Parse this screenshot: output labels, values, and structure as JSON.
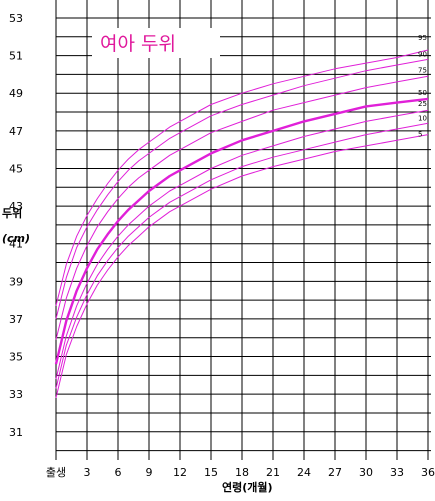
{
  "chart_data": {
    "type": "line",
    "title": "여아 두위",
    "xlabel": "연령(개월)",
    "ylabel": "두위",
    "ylabel_unit": "(cm)",
    "x_tick_labels": [
      "출생",
      "3",
      "6",
      "9",
      "12",
      "15",
      "18",
      "21",
      "24",
      "27",
      "30",
      "33",
      "36"
    ],
    "x_ticks": [
      0,
      3,
      6,
      9,
      12,
      15,
      18,
      21,
      24,
      27,
      30,
      33,
      36
    ],
    "xlim": [
      0,
      36
    ],
    "ylim": [
      29.5,
      53
    ],
    "y_ticks": [
      31,
      33,
      35,
      37,
      39,
      41,
      43,
      45,
      47,
      49,
      51,
      53
    ],
    "grid": true,
    "line_color": "#e020d8",
    "highlight_series": "50",
    "x": [
      0,
      1,
      2,
      3,
      4,
      5,
      6,
      7,
      8,
      9,
      10,
      11,
      12,
      15,
      18,
      21,
      24,
      27,
      30,
      33,
      36
    ],
    "series": [
      {
        "name": "95",
        "values": [
          37.7,
          39.9,
          41.4,
          42.5,
          43.4,
          44.2,
          44.9,
          45.5,
          46.0,
          46.4,
          46.8,
          47.2,
          47.5,
          48.4,
          49.0,
          49.5,
          49.9,
          50.3,
          50.6,
          50.9,
          51.3
        ]
      },
      {
        "name": "90",
        "values": [
          37.0,
          39.2,
          40.8,
          41.9,
          42.8,
          43.6,
          44.3,
          44.9,
          45.4,
          45.8,
          46.2,
          46.6,
          46.9,
          47.8,
          48.4,
          48.9,
          49.4,
          49.8,
          50.2,
          50.5,
          50.8
        ]
      },
      {
        "name": "75",
        "values": [
          35.9,
          38.1,
          39.7,
          40.9,
          41.9,
          42.7,
          43.4,
          44.0,
          44.5,
          44.9,
          45.3,
          45.7,
          46.0,
          46.9,
          47.5,
          48.1,
          48.5,
          48.9,
          49.3,
          49.6,
          49.9
        ]
      },
      {
        "name": "50",
        "values": [
          34.6,
          36.9,
          38.5,
          39.7,
          40.7,
          41.5,
          42.2,
          42.8,
          43.3,
          43.8,
          44.2,
          44.6,
          44.9,
          45.8,
          46.5,
          47.0,
          47.5,
          47.9,
          48.3,
          48.5,
          48.7
        ]
      },
      {
        "name": "25",
        "values": [
          33.8,
          36.1,
          37.7,
          38.9,
          39.9,
          40.7,
          41.4,
          42.0,
          42.5,
          43.0,
          43.4,
          43.8,
          44.1,
          45.0,
          45.7,
          46.2,
          46.7,
          47.1,
          47.5,
          47.8,
          48.1
        ]
      },
      {
        "name": "10",
        "values": [
          33.3,
          35.6,
          37.1,
          38.3,
          39.3,
          40.1,
          40.8,
          41.4,
          41.9,
          42.4,
          42.8,
          43.2,
          43.5,
          44.4,
          45.1,
          45.6,
          46.0,
          46.4,
          46.8,
          47.1,
          47.4
        ]
      },
      {
        "name": "5",
        "values": [
          32.8,
          35.1,
          36.6,
          37.8,
          38.8,
          39.6,
          40.3,
          40.9,
          41.4,
          41.9,
          42.3,
          42.7,
          43.0,
          43.9,
          44.6,
          45.1,
          45.5,
          45.9,
          46.2,
          46.5,
          46.8
        ]
      }
    ]
  }
}
